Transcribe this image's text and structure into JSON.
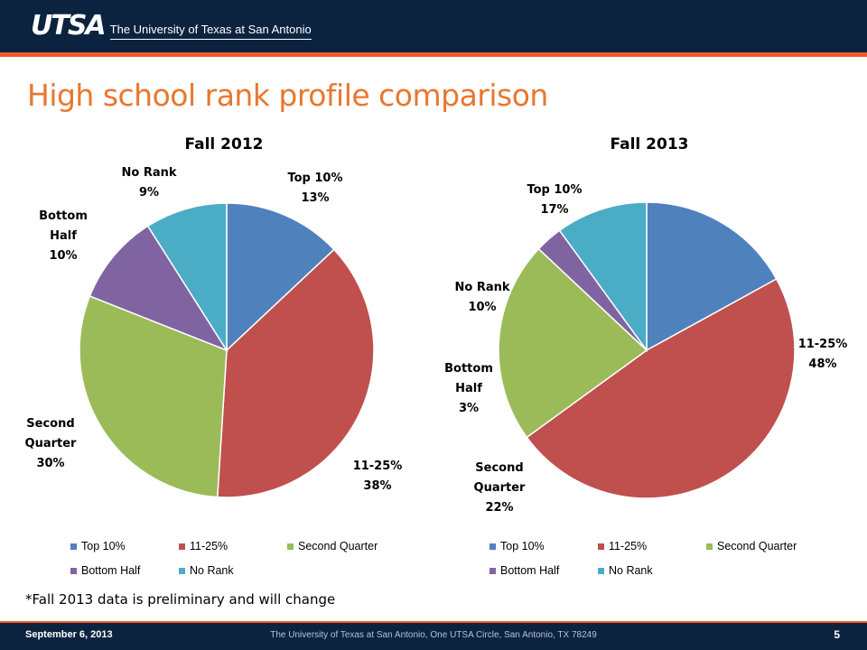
{
  "header": {
    "logo_mark": "UTSA",
    "logo_text": "The University of Texas at San Antonio"
  },
  "title": "High school rank profile comparison",
  "colors": {
    "header_bg": "#0c2340",
    "accent": "#f15a22",
    "title": "#e8772e",
    "top10": "#4f81bd",
    "r11_25": "#c0504d",
    "second_quarter": "#9bbb59",
    "bottom_half": "#8064a2",
    "no_rank": "#4bacc6"
  },
  "chart_data": [
    {
      "type": "pie",
      "title": "Fall 2012",
      "categories": [
        "Top 10%",
        "11-25%",
        "Second Quarter",
        "Bottom Half",
        "No Rank"
      ],
      "values": [
        13,
        38,
        30,
        10,
        9
      ],
      "slice_labels": [
        {
          "name": "Top 10%",
          "pct": "13%",
          "lines": [
            "Top 10%",
            "13%"
          ]
        },
        {
          "name": "11-25%",
          "pct": "38%",
          "lines": [
            "11-25%",
            "38%"
          ]
        },
        {
          "name": "Second Quarter",
          "pct": "30%",
          "lines": [
            "Second",
            "Quarter",
            "30%"
          ]
        },
        {
          "name": "Bottom Half",
          "pct": "10%",
          "lines": [
            "Bottom",
            "Half",
            "10%"
          ]
        },
        {
          "name": "No Rank",
          "pct": "9%",
          "lines": [
            "No Rank",
            "9%"
          ]
        }
      ],
      "legend": [
        "Top 10%",
        "11-25%",
        "Second Quarter",
        "Bottom Half",
        "No Rank"
      ],
      "legend_position": "bottom"
    },
    {
      "type": "pie",
      "title": "Fall 2013",
      "categories": [
        "Top 10%",
        "11-25%",
        "Second Quarter",
        "Bottom Half",
        "No Rank"
      ],
      "values": [
        17,
        48,
        22,
        3,
        10
      ],
      "slice_labels": [
        {
          "name": "Top 10%",
          "pct": "17%",
          "lines": [
            "Top 10%",
            "17%"
          ]
        },
        {
          "name": "11-25%",
          "pct": "48%",
          "lines": [
            "11-25%",
            "48%"
          ]
        },
        {
          "name": "Second Quarter",
          "pct": "22%",
          "lines": [
            "Second",
            "Quarter",
            "22%"
          ]
        },
        {
          "name": "Bottom Half",
          "pct": "3%",
          "lines": [
            "Bottom",
            "Half",
            "3%"
          ]
        },
        {
          "name": "No Rank",
          "pct": "10%",
          "lines": [
            "No Rank",
            "10%"
          ]
        }
      ],
      "legend": [
        "Top 10%",
        "11-25%",
        "Second Quarter",
        "Bottom Half",
        "No Rank"
      ],
      "legend_position": "bottom"
    }
  ],
  "note": "*Fall 2013 data is preliminary and will change",
  "footer": {
    "date": "September 6, 2013",
    "address": "The University of Texas at San Antonio, One UTSA Circle, San Antonio, TX 78249",
    "page": "5"
  }
}
